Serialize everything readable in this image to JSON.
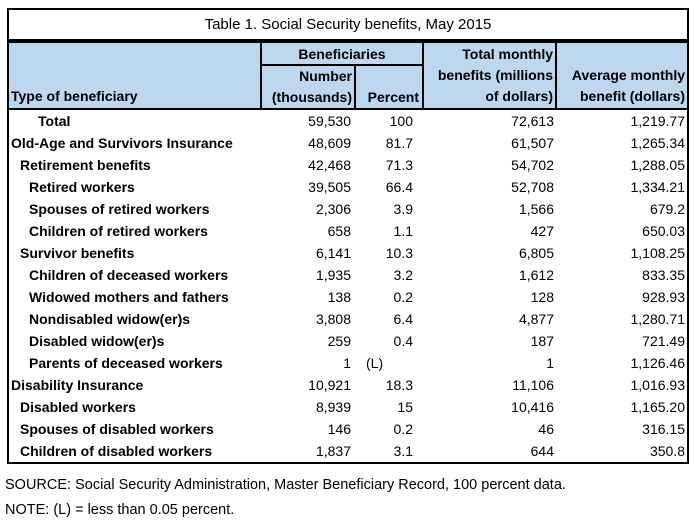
{
  "title": "Table 1. Social Security benefits, May 2015",
  "colors": {
    "header_bg": "#BDD7EE",
    "border": "#000000",
    "background": "#FFFFFF",
    "text": "#000000"
  },
  "table": {
    "columns": {
      "type_label": "Type of beneficiary",
      "beneficiaries_group": "Beneficiaries",
      "number_lines": [
        "Number",
        "(thousands)"
      ],
      "percent": "Percent",
      "total_monthly_lines": [
        "Total monthly",
        "benefits (millions",
        "of dollars)"
      ],
      "average_monthly_lines": [
        "Average monthly",
        "benefit (dollars)"
      ]
    },
    "rows": [
      {
        "label": "Total",
        "indent": 3,
        "number": "59,530",
        "percent": "100",
        "total": "72,613",
        "average": "1,219.77"
      },
      {
        "label": "Old-Age and Survivors Insurance",
        "indent": 0,
        "number": "48,609",
        "percent": "81.7",
        "total": "61,507",
        "average": "1,265.34"
      },
      {
        "label": "Retirement benefits",
        "indent": 1,
        "number": "42,468",
        "percent": "71.3",
        "total": "54,702",
        "average": "1,288.05"
      },
      {
        "label": "Retired workers",
        "indent": 2,
        "number": "39,505",
        "percent": "66.4",
        "total": "52,708",
        "average": "1,334.21"
      },
      {
        "label": "Spouses of retired workers",
        "indent": 2,
        "number": "2,306",
        "percent": "3.9",
        "total": "1,566",
        "average": "679.2"
      },
      {
        "label": "Children of retired workers",
        "indent": 2,
        "number": "658",
        "percent": "1.1",
        "total": "427",
        "average": "650.03"
      },
      {
        "label": "Survivor benefits",
        "indent": 1,
        "number": "6,141",
        "percent": "10.3",
        "total": "6,805",
        "average": "1,108.25"
      },
      {
        "label": "Children of deceased workers",
        "indent": 2,
        "number": "1,935",
        "percent": "3.2",
        "total": "1,612",
        "average": "833.35"
      },
      {
        "label": "Widowed mothers and fathers",
        "indent": 2,
        "number": "138",
        "percent": "0.2",
        "total": "128",
        "average": "928.93"
      },
      {
        "label": "Nondisabled widow(er)s",
        "indent": 2,
        "number": "3,808",
        "percent": "6.4",
        "total": "4,877",
        "average": "1,280.71"
      },
      {
        "label": "Disabled widow(er)s",
        "indent": 2,
        "number": "259",
        "percent": "0.4",
        "total": "187",
        "average": "721.49"
      },
      {
        "label": "Parents of deceased workers",
        "indent": 2,
        "number": "1",
        "percent": "(L)",
        "percent_align": "left",
        "total": "1",
        "average": "1,126.46"
      },
      {
        "label": "Disability Insurance",
        "indent": 0,
        "number": "10,921",
        "percent": "18.3",
        "total": "11,106",
        "average": "1,016.93"
      },
      {
        "label": "Disabled workers",
        "indent": 1,
        "number": "8,939",
        "percent": "15",
        "total": "10,416",
        "average": "1,165.20"
      },
      {
        "label": "Spouses of disabled workers",
        "indent": 1,
        "number": "146",
        "percent": "0.2",
        "total": "46",
        "average": "316.15"
      },
      {
        "label": "Children of disabled workers",
        "indent": 1,
        "number": "1,837",
        "percent": "3.1",
        "total": "644",
        "average": "350.8"
      }
    ]
  },
  "footer": {
    "source": "SOURCE: Social Security Administration, Master Beneficiary Record, 100 percent data.",
    "note": "NOTE: (L) = less than 0.05 percent."
  }
}
